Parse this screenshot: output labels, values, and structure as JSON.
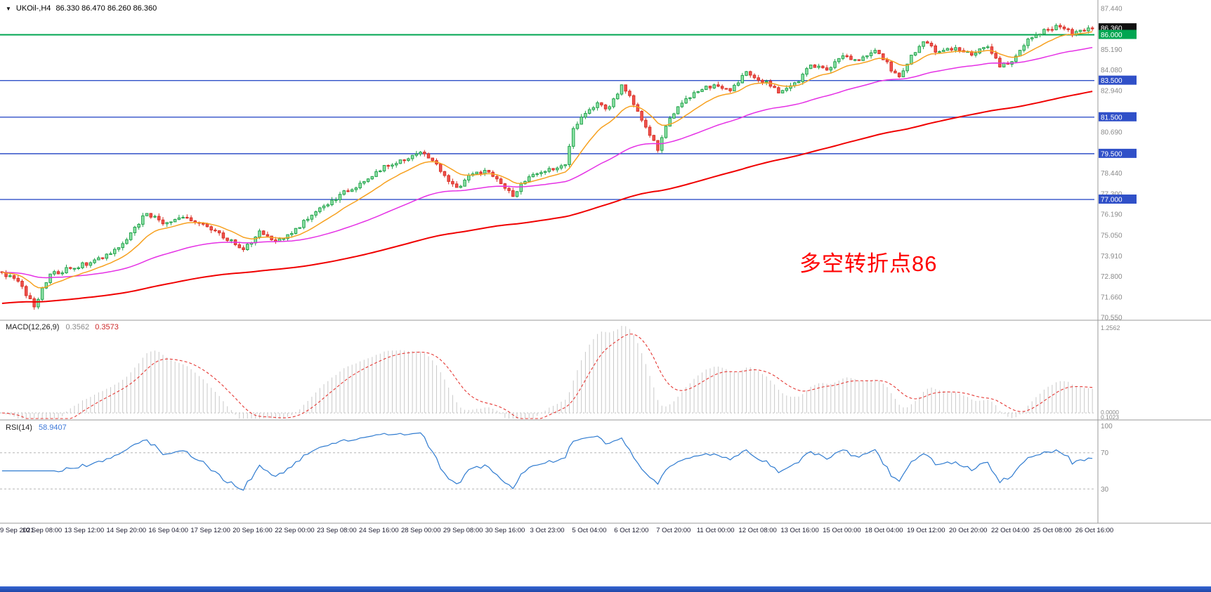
{
  "header": {
    "dropdown_glyph": "▼",
    "symbol": "UKOil-,H4",
    "ohlc": "86.330 86.470 86.260 86.360"
  },
  "main_chart": {
    "annotation": {
      "text": "多空转折点86",
      "color": "#ff0000"
    },
    "y_axis": {
      "gray_labels": [
        "87.440",
        "85.190",
        "84.080",
        "82.940",
        "80.690",
        "78.440",
        "77.300",
        "76.190",
        "75.050",
        "73.910",
        "72.800",
        "71.660",
        "70.550"
      ],
      "price_boxes": [
        {
          "label": "86.360",
          "value": 86.36,
          "bg": "#111111",
          "name": "current-price"
        },
        {
          "label": "86.000",
          "value": 86.0,
          "bg": "#00a651",
          "name": "green-level"
        },
        {
          "label": "83.500",
          "value": 83.5,
          "bg": "#3050c8",
          "name": "blue-level-1"
        },
        {
          "label": "81.500",
          "value": 81.5,
          "bg": "#3050c8",
          "name": "blue-level-2"
        },
        {
          "label": "79.500",
          "value": 79.5,
          "bg": "#3050c8",
          "name": "blue-level-3"
        },
        {
          "label": "77.000",
          "value": 77.0,
          "bg": "#3050c8",
          "name": "blue-level-4"
        }
      ]
    },
    "level_lines": [
      {
        "value": 86.0,
        "color": "#00a651",
        "width": 2
      },
      {
        "value": 83.5,
        "color": "#3050c8",
        "width": 1.4
      },
      {
        "value": 81.5,
        "color": "#3050c8",
        "width": 1.4
      },
      {
        "value": 79.5,
        "color": "#3050c8",
        "width": 1.4
      },
      {
        "value": 77.0,
        "color": "#3050c8",
        "width": 1.4
      }
    ]
  },
  "macd_panel": {
    "label": "MACD(12,26,9)",
    "value_main": "0.3562",
    "value_signal": "0.3573",
    "axis_max": "1.2562",
    "axis_zero": "0.0000",
    "axis_min": "0.1023"
  },
  "rsi_panel": {
    "label": "RSI(14)",
    "value": "58.9407",
    "axis_top": "100",
    "levels": [
      {
        "label": "70",
        "value": 70
      },
      {
        "label": "30",
        "value": 30
      }
    ]
  },
  "time_axis": {
    "labels": [
      "9 Sep 2021",
      "10 Sep 08:00",
      "13 Sep 12:00",
      "14 Sep 20:00",
      "16 Sep 04:00",
      "17 Sep 12:00",
      "20 Sep 16:00",
      "22 Sep 00:00",
      "23 Sep 08:00",
      "24 Sep 16:00",
      "28 Sep 00:00",
      "29 Sep 08:00",
      "30 Sep 16:00",
      "3 Oct 23:00",
      "5 Oct 04:00",
      "6 Oct 12:00",
      "7 Oct 20:00",
      "11 Oct 00:00",
      "12 Oct 08:00",
      "13 Oct 16:00",
      "15 Oct 00:00",
      "18 Oct 04:00",
      "19 Oct 12:00",
      "20 Oct 20:00",
      "22 Oct 04:00",
      "25 Oct 08:00",
      "26 Oct 16:00"
    ]
  },
  "chart_data": {
    "type": "candlestick",
    "symbol": "UKOil",
    "timeframe": "H4",
    "current_ohlc": {
      "open": 86.33,
      "high": 86.47,
      "low": 86.26,
      "close": 86.36
    },
    "bar_count": 272,
    "price_axis_range": [
      70.4,
      87.9
    ],
    "price_anchors": [
      [
        0,
        73.0
      ],
      [
        4,
        72.5
      ],
      [
        8,
        71.2
      ],
      [
        12,
        72.9
      ],
      [
        18,
        73.3
      ],
      [
        24,
        73.7
      ],
      [
        30,
        74.6
      ],
      [
        36,
        76.3
      ],
      [
        40,
        75.7
      ],
      [
        45,
        76.1
      ],
      [
        50,
        75.6
      ],
      [
        55,
        75.0
      ],
      [
        60,
        74.2
      ],
      [
        64,
        75.2
      ],
      [
        68,
        74.6
      ],
      [
        73,
        75.4
      ],
      [
        79,
        76.5
      ],
      [
        85,
        77.4
      ],
      [
        91,
        78.1
      ],
      [
        96,
        78.9
      ],
      [
        101,
        79.3
      ],
      [
        105,
        79.6
      ],
      [
        109,
        78.6
      ],
      [
        113,
        77.6
      ],
      [
        117,
        78.4
      ],
      [
        121,
        78.5
      ],
      [
        124,
        77.9
      ],
      [
        127,
        77.2
      ],
      [
        131,
        78.3
      ],
      [
        136,
        78.6
      ],
      [
        140,
        78.9
      ],
      [
        142,
        80.9
      ],
      [
        145,
        81.7
      ],
      [
        148,
        82.2
      ],
      [
        151,
        82.0
      ],
      [
        154,
        83.2
      ],
      [
        157,
        82.3
      ],
      [
        160,
        81.0
      ],
      [
        163,
        79.8
      ],
      [
        166,
        81.5
      ],
      [
        169,
        82.3
      ],
      [
        173,
        82.9
      ],
      [
        177,
        83.3
      ],
      [
        181,
        83.0
      ],
      [
        185,
        83.9
      ],
      [
        189,
        83.5
      ],
      [
        193,
        82.9
      ],
      [
        197,
        83.3
      ],
      [
        201,
        84.3
      ],
      [
        205,
        84.1
      ],
      [
        209,
        84.8
      ],
      [
        213,
        84.5
      ],
      [
        217,
        85.2
      ],
      [
        220,
        84.4
      ],
      [
        223,
        83.6
      ],
      [
        226,
        84.8
      ],
      [
        229,
        85.6
      ],
      [
        233,
        85.0
      ],
      [
        237,
        85.3
      ],
      [
        241,
        84.9
      ],
      [
        245,
        85.4
      ],
      [
        248,
        84.3
      ],
      [
        251,
        84.6
      ],
      [
        254,
        85.5
      ],
      [
        257,
        86.0
      ],
      [
        260,
        86.3
      ],
      [
        263,
        86.5
      ],
      [
        266,
        86.1
      ],
      [
        271,
        86.36
      ]
    ],
    "horizontal_levels": [
      86.0,
      83.5,
      81.5,
      79.5,
      77.0
    ],
    "indicators": {
      "ma_fast": {
        "period": 13,
        "color": "#f7a120"
      },
      "ma_mid": {
        "period": 55,
        "color": "#e531e5"
      },
      "ma_slow": {
        "period": 160,
        "color": "#f00000",
        "seed": 71.3
      },
      "macd": {
        "fast": 12,
        "slow": 26,
        "signal": 9,
        "current_main": 0.3562,
        "current_signal": 0.3573,
        "axis_max": 1.2562
      },
      "rsi": {
        "period": 14,
        "current": 58.9407,
        "levels": [
          70,
          30
        ]
      }
    },
    "candle_colors": {
      "up_fill": "#8fe3a8",
      "up_stroke": "#22a24b",
      "down_fill": "#ef5350",
      "down_stroke": "#d93025"
    }
  }
}
